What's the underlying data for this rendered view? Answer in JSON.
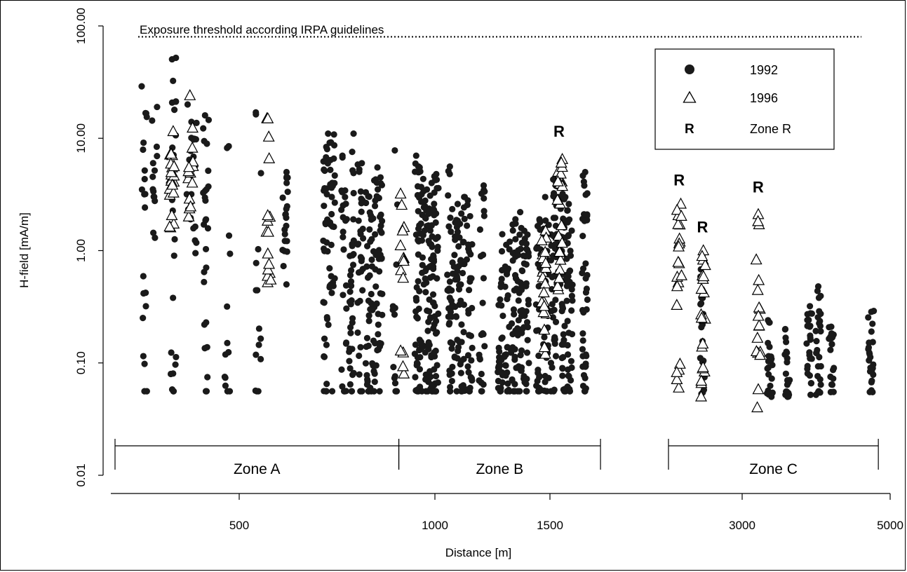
{
  "colors": {
    "point_1992": "#1a1a1a",
    "point_1996_stroke": "#000000",
    "background": "#ffffff"
  },
  "chart_data": {
    "type": "scatter",
    "xlabel": "Distance [m]",
    "ylabel": "H-field [mA/m]",
    "x_scale": "log",
    "y_scale": "log",
    "xlim": [
      300,
      5000
    ],
    "ylim": [
      0.01,
      100
    ],
    "x_ticks": [
      "500",
      "1000",
      "1500",
      "3000",
      "5000"
    ],
    "y_ticks": [
      "0.01",
      "0.10",
      "1.00",
      "10.00",
      "100.00"
    ],
    "grid": false,
    "legend_position": "top-right",
    "legend": [
      {
        "marker": "filled-circle",
        "label": "1992"
      },
      {
        "marker": "open-triangle",
        "label": "1996"
      },
      {
        "marker": "R",
        "label": "Zone R"
      }
    ],
    "threshold": {
      "label": "Exposure threshold according IRPA guidelines",
      "y": 80,
      "style": "dotted"
    },
    "zones": [
      {
        "label": "Zone A",
        "x_start": 290,
        "x_end": 880
      },
      {
        "label": "Zone B",
        "x_start": 880,
        "x_end": 1800
      },
      {
        "label": "Zone C",
        "x_start": 2300,
        "x_end": 4800
      }
    ],
    "zone_r_markers": [
      {
        "label": "R",
        "x": 1550,
        "y": 10.3
      },
      {
        "label": "R",
        "x": 2390,
        "y": 3.8
      },
      {
        "label": "R",
        "x": 2600,
        "y": 1.45
      },
      {
        "label": "R",
        "x": 3170,
        "y": 3.3
      }
    ],
    "series": [
      {
        "name": "1992",
        "marker": "filled-circle",
        "columns": [
          {
            "x": 330,
            "y_min": 0.056,
            "y_max": 29,
            "n": 20,
            "floor": true
          },
          {
            "x": 345,
            "y_min": 1.3,
            "y_max": 19,
            "n": 14,
            "floor": false
          },
          {
            "x": 375,
            "y_min": 0.056,
            "y_max": 52,
            "n": 26,
            "floor": true
          },
          {
            "x": 400,
            "y_min": 1.9,
            "y_max": 20,
            "n": 10,
            "floor": false
          },
          {
            "x": 410,
            "y_min": 0.95,
            "y_max": 14,
            "n": 14,
            "floor": false
          },
          {
            "x": 432,
            "y_min": 0.056,
            "y_max": 16,
            "n": 26,
            "floor": true
          },
          {
            "x": 475,
            "y_min": 0.056,
            "y_max": 8.5,
            "n": 12,
            "floor": true
          },
          {
            "x": 535,
            "y_min": 0.056,
            "y_max": 17,
            "n": 14,
            "floor": true
          },
          {
            "x": 588,
            "y_min": 0.5,
            "y_max": 5,
            "n": 22,
            "floor": false
          },
          {
            "x": 680,
            "y_min": 0.056,
            "y_max": 11,
            "n": 34,
            "floor": true
          },
          {
            "x": 695,
            "y_min": 0.42,
            "y_max": 10.8,
            "n": 30,
            "floor": true
          },
          {
            "x": 725,
            "y_min": 0.056,
            "y_max": 7,
            "n": 24,
            "floor": true
          },
          {
            "x": 745,
            "y_min": 0.056,
            "y_max": 11,
            "n": 34,
            "floor": true
          },
          {
            "x": 768,
            "y_min": 0.056,
            "y_max": 6,
            "n": 30,
            "floor": true
          },
          {
            "x": 790,
            "y_min": 0.056,
            "y_max": 3.3,
            "n": 28,
            "floor": true
          },
          {
            "x": 806,
            "y_min": 0.056,
            "y_max": 4.3,
            "n": 30,
            "floor": true
          },
          {
            "x": 822,
            "y_min": 0.13,
            "y_max": 5.5,
            "n": 30,
            "floor": true
          },
          {
            "x": 870,
            "y_min": 0.056,
            "y_max": 7.8,
            "n": 12,
            "floor": true
          },
          {
            "x": 940,
            "y_min": 0.056,
            "y_max": 7,
            "n": 40,
            "floor": true
          },
          {
            "x": 955,
            "y_min": 0.13,
            "y_max": 5.5,
            "n": 30,
            "floor": true
          },
          {
            "x": 975,
            "y_min": 0.056,
            "y_max": 3.5,
            "n": 34,
            "floor": true
          },
          {
            "x": 990,
            "y_min": 0.056,
            "y_max": 4,
            "n": 40,
            "floor": true
          },
          {
            "x": 1003,
            "y_min": 0.056,
            "y_max": 4.8,
            "n": 32,
            "floor": true
          },
          {
            "x": 1055,
            "y_min": 0.056,
            "y_max": 5.6,
            "n": 36,
            "floor": true
          },
          {
            "x": 1080,
            "y_min": 0.11,
            "y_max": 2.6,
            "n": 30,
            "floor": true
          },
          {
            "x": 1100,
            "y_min": 0.056,
            "y_max": 3,
            "n": 30,
            "floor": true
          },
          {
            "x": 1130,
            "y_min": 0.056,
            "y_max": 2.8,
            "n": 30,
            "floor": true
          },
          {
            "x": 1180,
            "y_min": 0.056,
            "y_max": 3.8,
            "n": 24,
            "floor": true
          },
          {
            "x": 1260,
            "y_min": 0.056,
            "y_max": 1.4,
            "n": 30,
            "floor": true
          },
          {
            "x": 1290,
            "y_min": 0.056,
            "y_max": 1.2,
            "n": 24,
            "floor": true
          },
          {
            "x": 1320,
            "y_min": 0.056,
            "y_max": 1.9,
            "n": 30,
            "floor": true
          },
          {
            "x": 1348,
            "y_min": 0.056,
            "y_max": 2.2,
            "n": 34,
            "floor": true
          },
          {
            "x": 1380,
            "y_min": 0.056,
            "y_max": 1.5,
            "n": 30,
            "floor": true
          },
          {
            "x": 1440,
            "y_min": 0.056,
            "y_max": 1.9,
            "n": 30,
            "floor": true
          },
          {
            "x": 1480,
            "y_min": 0.056,
            "y_max": 3,
            "n": 34,
            "floor": true
          },
          {
            "x": 1520,
            "y_min": 0.056,
            "y_max": 4.3,
            "n": 36,
            "floor": true
          },
          {
            "x": 1548,
            "y_min": 0.5,
            "y_max": 4.5,
            "n": 20,
            "floor": false
          },
          {
            "x": 1580,
            "y_min": 0.056,
            "y_max": 3.2,
            "n": 34,
            "floor": true
          },
          {
            "x": 1612,
            "y_min": 0.056,
            "y_max": 2.6,
            "n": 36,
            "floor": true
          },
          {
            "x": 1700,
            "y_min": 0.056,
            "y_max": 5,
            "n": 40,
            "floor": true
          },
          {
            "x": 2600,
            "y_min": 0.053,
            "y_max": 0.9,
            "n": 24,
            "floor": false
          },
          {
            "x": 3300,
            "y_min": 0.05,
            "y_max": 0.24,
            "n": 22,
            "floor": false
          },
          {
            "x": 3500,
            "y_min": 0.05,
            "y_max": 0.2,
            "n": 22,
            "floor": false
          },
          {
            "x": 3780,
            "y_min": 0.052,
            "y_max": 0.32,
            "n": 24,
            "floor": false
          },
          {
            "x": 3900,
            "y_min": 0.052,
            "y_max": 0.48,
            "n": 26,
            "floor": false
          },
          {
            "x": 4080,
            "y_min": 0.055,
            "y_max": 0.21,
            "n": 22,
            "floor": false
          },
          {
            "x": 4680,
            "y_min": 0.055,
            "y_max": 0.29,
            "n": 24,
            "floor": false
          }
        ]
      },
      {
        "name": "1996",
        "marker": "open-triangle",
        "columns": [
          {
            "x": 372,
            "y_min": 1.6,
            "y_max": 11.5,
            "n": 22
          },
          {
            "x": 404,
            "y_min": 2.0,
            "y_max": 24,
            "n": 14
          },
          {
            "x": 555,
            "y_min": 0.52,
            "y_max": 15,
            "n": 16
          },
          {
            "x": 892,
            "y_min": 0.08,
            "y_max": 3.2,
            "n": 14
          },
          {
            "x": 1470,
            "y_min": 0.12,
            "y_max": 1.5,
            "n": 20
          },
          {
            "x": 1555,
            "y_min": 0.45,
            "y_max": 6.5,
            "n": 22
          },
          {
            "x": 2390,
            "y_min": 0.06,
            "y_max": 2.6,
            "n": 22
          },
          {
            "x": 2610,
            "y_min": 0.05,
            "y_max": 1.0,
            "n": 20
          },
          {
            "x": 3170,
            "y_min": 0.04,
            "y_max": 2.1,
            "n": 18
          }
        ]
      }
    ]
  }
}
